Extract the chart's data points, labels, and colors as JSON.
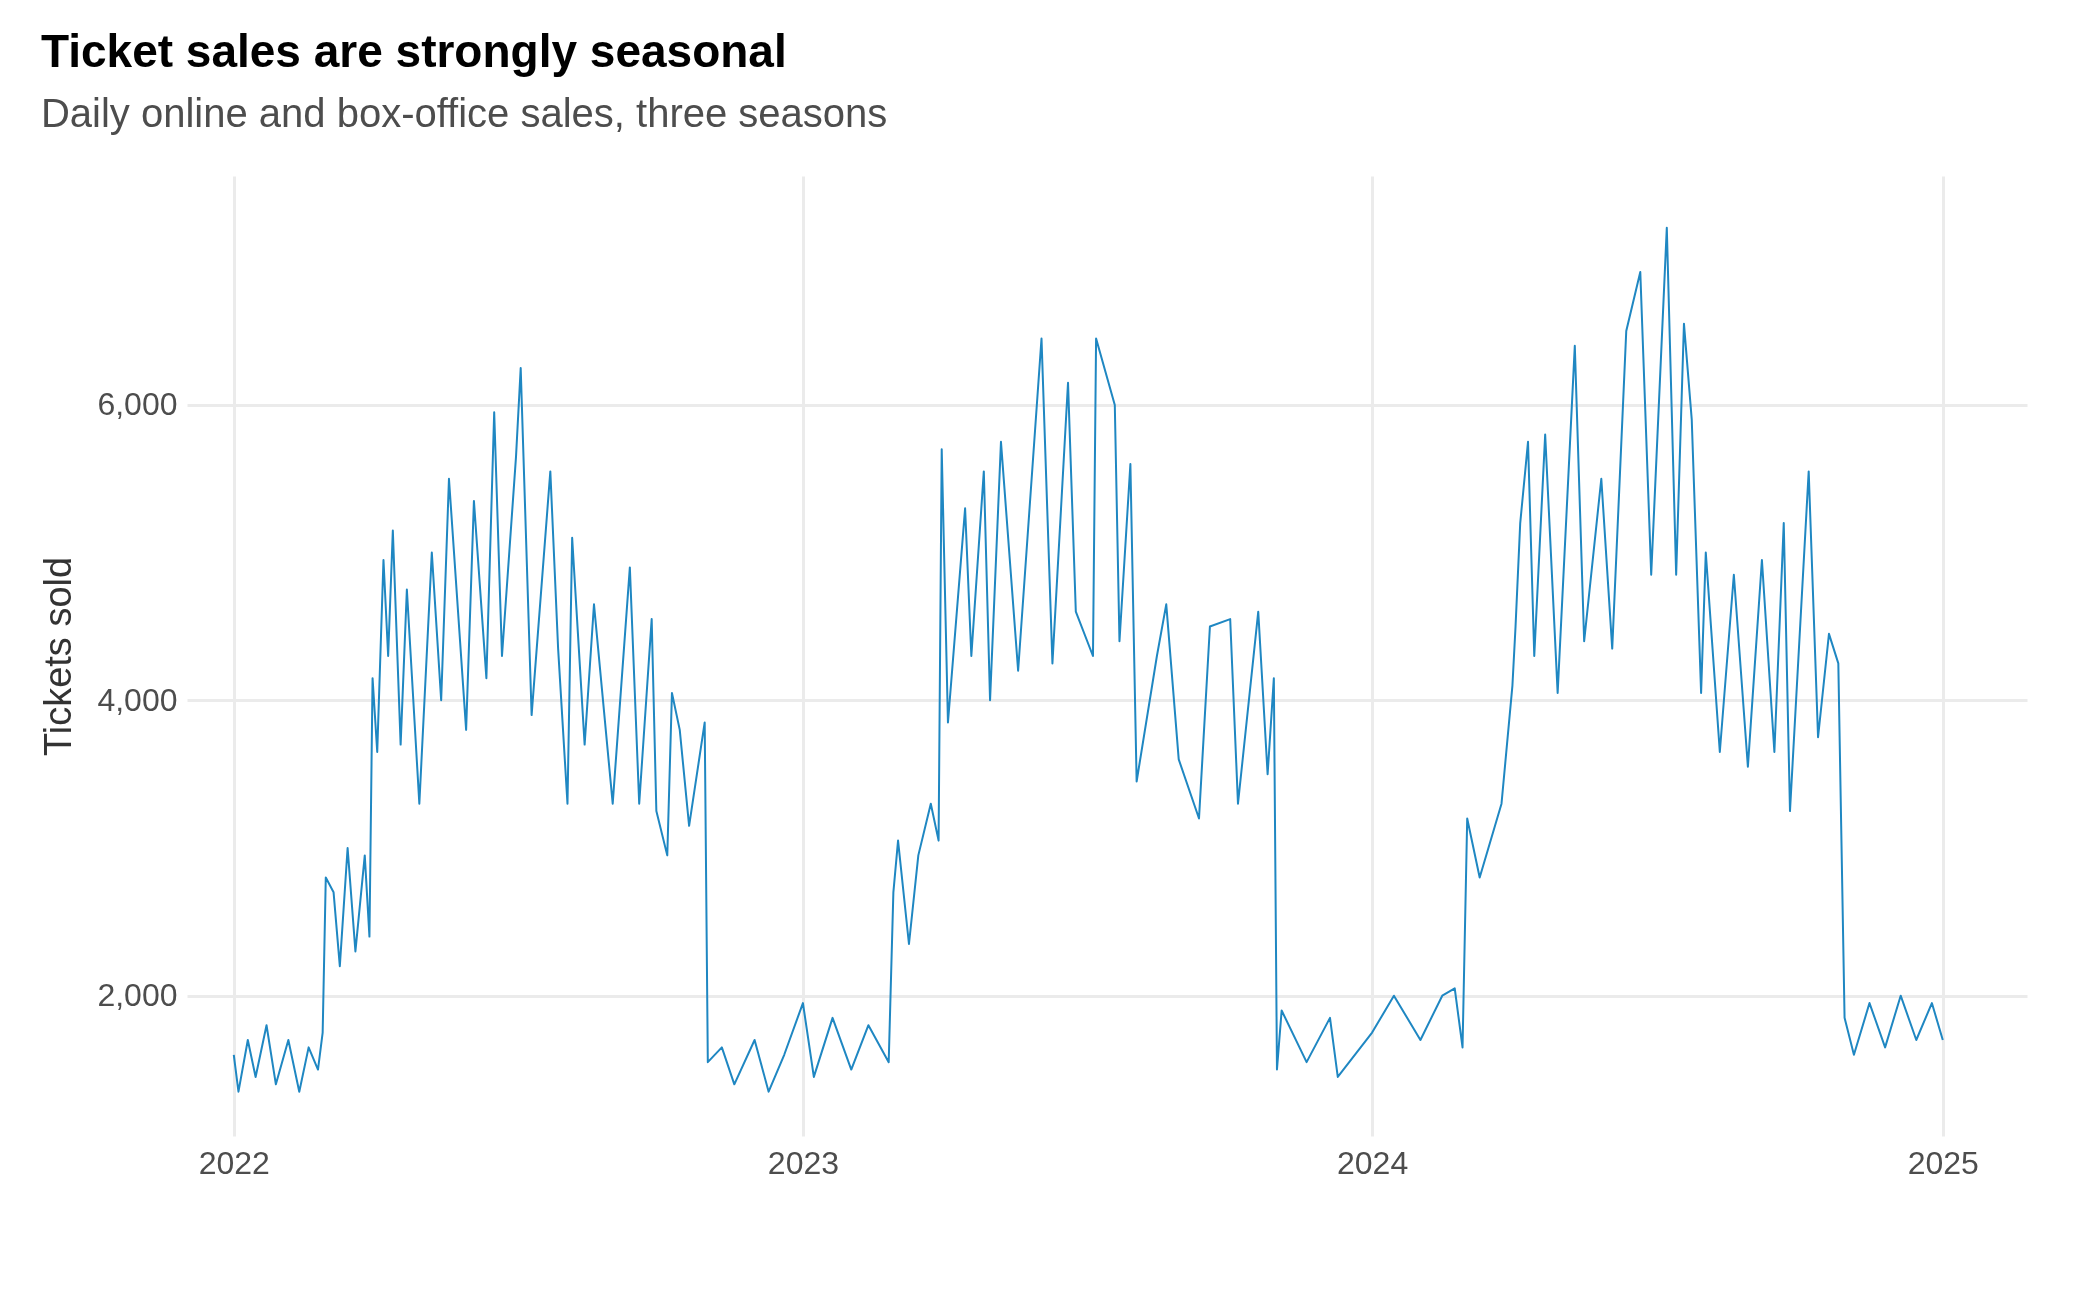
{
  "chart_data": {
    "type": "line",
    "title": "Ticket sales are strongly seasonal",
    "subtitle": "Daily online and box-office sales, three seasons",
    "ylabel": "Tickets sold",
    "x": [
      "2022-01-01",
      "2022-01-04",
      "2022-01-10",
      "2022-01-15",
      "2022-01-22",
      "2022-01-28",
      "2022-02-05",
      "2022-02-12",
      "2022-02-18",
      "2022-02-24",
      "2022-02-27",
      "2022-03-01",
      "2022-03-06",
      "2022-03-10",
      "2022-03-15",
      "2022-03-20",
      "2022-03-26",
      "2022-03-29",
      "2022-03-31",
      "2022-04-03",
      "2022-04-07",
      "2022-04-10",
      "2022-04-13",
      "2022-04-18",
      "2022-04-22",
      "2022-04-30",
      "2022-05-08",
      "2022-05-14",
      "2022-05-19",
      "2022-05-30",
      "2022-06-04",
      "2022-06-12",
      "2022-06-17",
      "2022-06-22",
      "2022-07-01",
      "2022-07-04",
      "2022-07-11",
      "2022-07-23",
      "2022-07-28",
      "2022-08-03",
      "2022-08-06",
      "2022-08-14",
      "2022-08-20",
      "2022-09-01",
      "2022-09-12",
      "2022-09-18",
      "2022-09-26",
      "2022-09-29",
      "2022-10-06",
      "2022-10-09",
      "2022-10-14",
      "2022-10-20",
      "2022-10-30",
      "2022-11-01",
      "2022-11-10",
      "2022-11-18",
      "2022-12-01",
      "2022-12-10",
      "2022-12-20",
      "2023-01-01",
      "2023-01-08",
      "2023-01-20",
      "2023-02-01",
      "2023-02-12",
      "2023-02-25",
      "2023-02-28",
      "2023-03-03",
      "2023-03-10",
      "2023-03-16",
      "2023-03-24",
      "2023-03-29",
      "2023-03-31",
      "2023-04-04",
      "2023-04-15",
      "2023-04-19",
      "2023-04-27",
      "2023-05-01",
      "2023-05-08",
      "2023-05-19",
      "2023-06-03",
      "2023-06-10",
      "2023-06-20",
      "2023-06-25",
      "2023-07-06",
      "2023-07-08",
      "2023-07-20",
      "2023-07-23",
      "2023-07-30",
      "2023-08-03",
      "2023-08-16",
      "2023-08-22",
      "2023-08-30",
      "2023-09-12",
      "2023-09-19",
      "2023-10-02",
      "2023-10-07",
      "2023-10-20",
      "2023-10-26",
      "2023-10-30",
      "2023-11-01",
      "2023-11-04",
      "2023-11-20",
      "2023-12-05",
      "2023-12-10",
      "2024-01-01",
      "2024-01-15",
      "2024-02-01",
      "2024-02-15",
      "2024-02-23",
      "2024-02-28",
      "2024-03-02",
      "2024-03-10",
      "2024-03-24",
      "2024-03-31",
      "2024-04-02",
      "2024-04-05",
      "2024-04-10",
      "2024-04-14",
      "2024-04-21",
      "2024-04-29",
      "2024-05-10",
      "2024-05-16",
      "2024-05-27",
      "2024-06-03",
      "2024-06-12",
      "2024-06-21",
      "2024-06-28",
      "2024-07-08",
      "2024-07-14",
      "2024-07-19",
      "2024-07-24",
      "2024-07-30",
      "2024-08-02",
      "2024-08-11",
      "2024-08-20",
      "2024-08-29",
      "2024-09-07",
      "2024-09-15",
      "2024-09-21",
      "2024-09-25",
      "2024-10-07",
      "2024-10-13",
      "2024-10-20",
      "2024-10-26",
      "2024-10-30",
      "2024-11-05",
      "2024-11-15",
      "2024-11-25",
      "2024-12-05",
      "2024-12-15",
      "2024-12-25",
      "2025-01-01"
    ],
    "series": [
      {
        "color": "#1f87c2",
        "values": [
          1600,
          1350,
          1700,
          1450,
          1800,
          1400,
          1700,
          1350,
          1650,
          1500,
          1750,
          2800,
          2700,
          2200,
          3000,
          2300,
          2950,
          2400,
          4150,
          3650,
          4950,
          4300,
          5150,
          3700,
          4750,
          3300,
          5000,
          4000,
          5500,
          3800,
          5350,
          4150,
          5950,
          4300,
          5650,
          6250,
          3900,
          5550,
          4350,
          3300,
          5100,
          3700,
          4650,
          3300,
          4900,
          3300,
          4550,
          3250,
          2950,
          4050,
          3800,
          3150,
          3850,
          1550,
          1650,
          1400,
          1700,
          1350,
          1600,
          1950,
          1450,
          1850,
          1500,
          1800,
          1550,
          2700,
          3050,
          2350,
          2950,
          3300,
          3050,
          5700,
          3850,
          5300,
          4300,
          5550,
          4000,
          5750,
          4200,
          6450,
          4250,
          6150,
          4600,
          4300,
          6450,
          6000,
          4400,
          5600,
          3450,
          4300,
          4650,
          3600,
          3200,
          4500,
          4550,
          3300,
          4600,
          3500,
          4150,
          1500,
          1900,
          1550,
          1850,
          1450,
          1750,
          2000,
          1700,
          2000,
          2050,
          1650,
          3200,
          2800,
          3300,
          4100,
          4500,
          5200,
          5750,
          4300,
          5800,
          4050,
          6400,
          4400,
          5500,
          4350,
          6500,
          6900,
          4850,
          7200,
          4850,
          6550,
          5900,
          4050,
          5000,
          3650,
          4850,
          3550,
          4950,
          3650,
          5200,
          3250,
          5550,
          3750,
          4450,
          4250,
          1850,
          1600,
          1950,
          1650,
          2000,
          1700,
          1950,
          1700
        ]
      }
    ],
    "xlim": [
      "2021-12-02",
      "2025-02-24"
    ],
    "xticks": [
      "2022",
      "2023",
      "2024",
      "2025"
    ],
    "ylim": [
      1050,
      7550
    ],
    "yticks": [
      {
        "value": 2000,
        "label": "2,000"
      },
      {
        "value": 4000,
        "label": "4,000"
      },
      {
        "value": 6000,
        "label": "6,000"
      }
    ],
    "grid": true,
    "line_style": "solid"
  }
}
